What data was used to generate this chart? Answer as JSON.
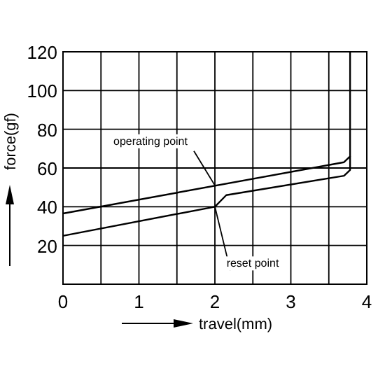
{
  "chart_data": {
    "type": "line",
    "xlabel": "travel(mm)",
    "ylabel": "force(gf)",
    "xlim": [
      0,
      4
    ],
    "xticks": [
      0,
      {
        "value": 0.5,
        "label": null
      },
      1,
      {
        "value": 1.5,
        "label": null
      },
      2,
      {
        "value": 2.5,
        "label": null
      },
      3,
      {
        "value": 3.5,
        "label": null
      },
      4
    ],
    "ylim": [
      0,
      120
    ],
    "yticks": [
      {
        "value": 0,
        "label": null
      },
      20,
      40,
      60,
      80,
      100,
      120
    ],
    "grid": true,
    "marker": "none",
    "line_style": "solid",
    "series": [
      {
        "color": "#000000",
        "x": [
          0,
          3.7,
          3.78,
          3.78
        ],
        "values": [
          36.5,
          63,
          66,
          120
        ]
      },
      {
        "color": "#000000",
        "x": [
          0,
          2,
          2.15,
          3.7,
          3.78,
          3.78
        ],
        "values": [
          25,
          40,
          46,
          56,
          59,
          66
        ]
      }
    ],
    "annotations": [
      {
        "text": "operating point",
        "x": 2,
        "y": 51
      },
      {
        "text": "reset point",
        "x": 2,
        "y": 40
      }
    ]
  }
}
